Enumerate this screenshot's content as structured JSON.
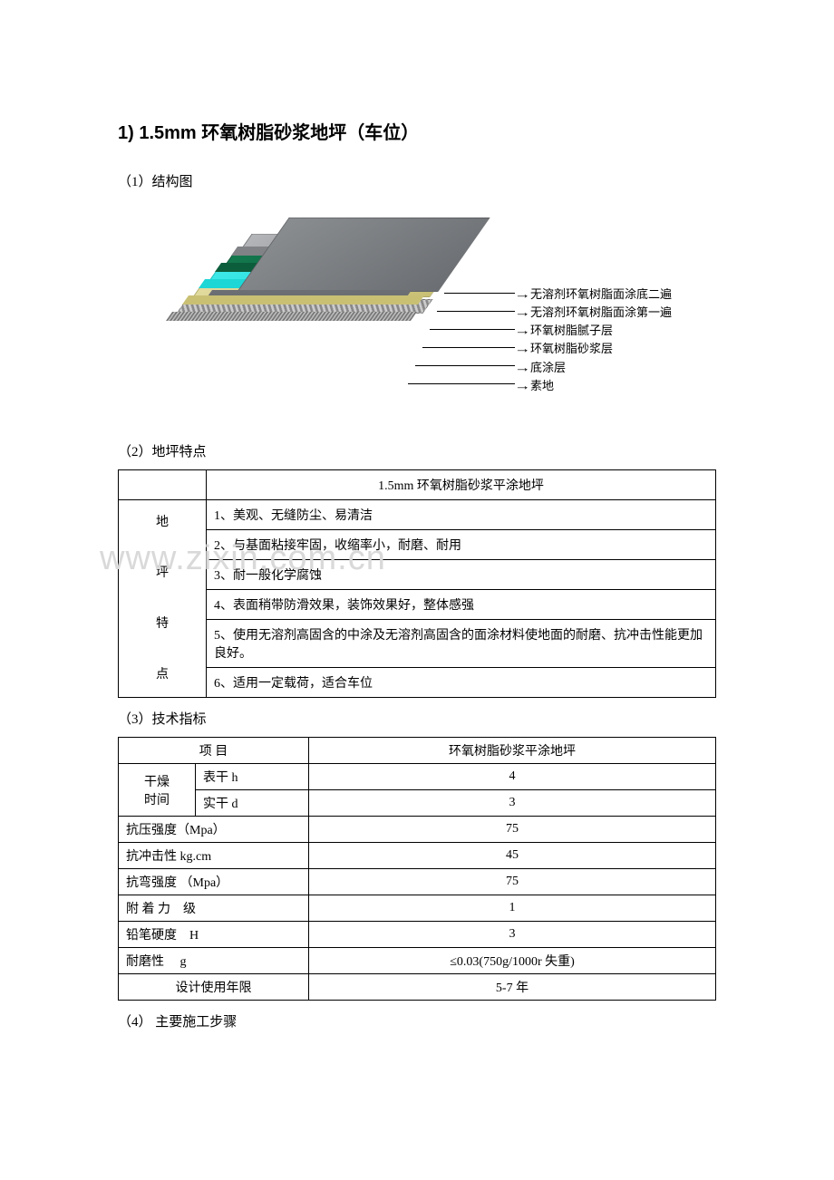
{
  "title": "1) 1.5mm 环氧树脂砂浆地坪（车位）",
  "sections": {
    "s1": "（1）结构图",
    "s2": "（2）地坪特点",
    "s3": "（3）技术指标",
    "s4": "（4） 主要施工步骤"
  },
  "watermark": "www.zixin.com.cn",
  "diagram": {
    "layers": [
      {
        "label": "无溶剂环氧树脂面涂底二遍",
        "color": "#6b6e72",
        "top_color": "#8a8d90"
      },
      {
        "label": "无溶剂环氧树脂面涂第一遍",
        "color": "#808285",
        "top_color": "#b4b6b9"
      },
      {
        "label": "环氧树脂腻子层",
        "color": "#0c5d3c",
        "top_color": "#14794e"
      },
      {
        "label": "环氧树脂砂浆层",
        "color": "#1dd6d6",
        "top_color": "#3de8e8"
      },
      {
        "label": "底涂层",
        "color": "#c9c074",
        "top_color": "#e2db9f"
      },
      {
        "label": "素地",
        "color": "#9e9e9e",
        "top_color": "#bfbfbf",
        "texture": true
      }
    ]
  },
  "table1": {
    "header": "1.5mm 环氧树脂砂浆平涂地坪",
    "row_label": "地\n坪\n特\n点",
    "rows": [
      "1、美观、无缝防尘、易清洁",
      "2、与基面粘接牢固，收缩率小，耐磨、耐用",
      "3、耐一般化学腐蚀",
      "4、表面稍带防滑效果，装饰效果好，整体感强",
      "5、使用无溶剂高固含的中涂及无溶剂高固含的面涂材料使地面的耐磨、抗冲击性能更加良好。",
      "6、适用一定载荷，适合车位"
    ]
  },
  "table2": {
    "header_left": "项 目",
    "header_right": "环氧树脂砂浆平涂地坪",
    "rows": [
      {
        "c1": "干燥\n时间",
        "c2": "表干 h",
        "v": "4",
        "rowspan": 2
      },
      {
        "c2": "实干 d",
        "v": "3"
      },
      {
        "c1b": "抗压强度（Mpa）",
        "v": "75"
      },
      {
        "c1b": "抗冲击性 kg.cm",
        "v": "45"
      },
      {
        "c1b": "抗弯强度 （Mpa）",
        "v": "75"
      },
      {
        "c1b": "附 着 力　级",
        "v": "1"
      },
      {
        "c1b": "铅笔硬度　H",
        "v": "3"
      },
      {
        "c1b": "耐磨性　 g",
        "v": "≤0.03(750g/1000r 失重)"
      },
      {
        "c1b": "设计使用年限",
        "v": "5-7 年",
        "center": true
      }
    ]
  }
}
